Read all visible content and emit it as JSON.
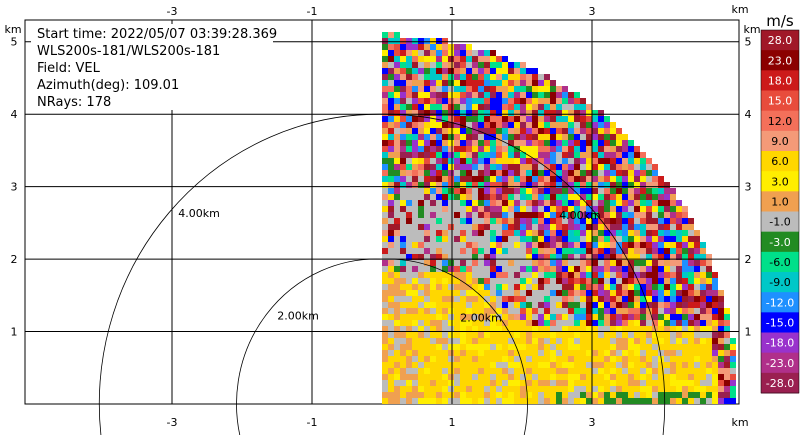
{
  "chart_data": {
    "type": "heatmap",
    "subtype": "radar-ppi",
    "info": {
      "start_time": "Start time: 2022/05/07 03:39:28.369",
      "instrument": "WLS200s-181/WLS200s-181",
      "field": "Field: VEL",
      "azimuth": "Azimuth(deg): 109.01",
      "nrays": "NRays: 178"
    },
    "x_unit": "km",
    "y_unit": "km",
    "xlim": [
      -5.1,
      5.1
    ],
    "ylim": [
      0,
      5.3
    ],
    "x_ticks": [
      "-3",
      "-1",
      "1",
      "3"
    ],
    "y_ticks": [
      "1",
      "2",
      "3",
      "4",
      "5"
    ],
    "range_rings": [
      {
        "radius_km": 2.0,
        "label": "2.00km"
      },
      {
        "radius_km": 4.0,
        "label": "4.00km"
      }
    ],
    "sector": {
      "x_start_km": 0.0,
      "max_range_km": 5.1,
      "quadrant": "upper-right"
    },
    "colorbar": {
      "unit": "m/s",
      "labels": [
        "28.0",
        "23.0",
        "18.0",
        "15.0",
        "12.0",
        "9.0",
        "6.0",
        "3.0",
        "1.0",
        "-1.0",
        "-3.0",
        "-6.0",
        "-9.0",
        "-12.0",
        "-15.0",
        "-18.0",
        "-23.0",
        "-28.0"
      ],
      "colors": [
        "#a01828",
        "#8b0000",
        "#cc1a1a",
        "#e84c3c",
        "#f4705a",
        "#f49a78",
        "#ffd700",
        "#ffee00",
        "#f0a050",
        "#bcbcbc",
        "#228b22",
        "#00e08a",
        "#00c8c8",
        "#1e90ff",
        "#0000ff",
        "#9932cc",
        "#b0308a",
        "#9a2050"
      ]
    }
  }
}
